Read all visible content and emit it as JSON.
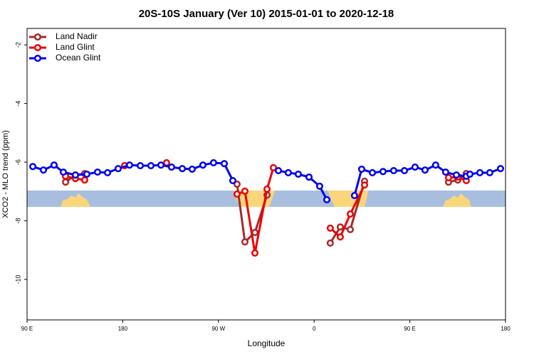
{
  "chart_data": {
    "type": "line",
    "title": "20S-10S January (Ver 10)   2015-01-01 to 2020-12-18",
    "x_label": "Longitude",
    "y_label": "XCO2 - MLO trend (ppm)",
    "xlim": [
      90,
      540
    ],
    "ylim": [
      -11.38,
      -1.44
    ],
    "xticks": [
      {
        "value": 90,
        "label": "90 E"
      },
      180,
      {
        "value": 270,
        "label": "90 W"
      },
      {
        "value": 360,
        "label": "0"
      },
      {
        "value": 450,
        "label": "90 E"
      },
      {
        "value": 540,
        "label": "180"
      }
    ],
    "yticks": [
      -2,
      -4,
      -6,
      -8,
      -10
    ],
    "grid": false,
    "legend": "top-left",
    "series": [
      {
        "name": "Land Nadir",
        "color": "#a52a2a",
        "x": [
          126.2,
          135.5,
          144.2,
          null,
          287.5,
          294.9,
          304.3,
          315.7,
          null,
          375.2,
          384.6,
          394.0,
          407.4,
          null,
          486.4,
          495.1,
          503.1
        ],
        "values": [
          -6.68,
          -6.44,
          -6.39,
          null,
          -6.75,
          -8.72,
          -8.4,
          -7.12,
          null,
          -8.76,
          -8.21,
          -8.3,
          -6.65,
          null,
          -6.68,
          -6.61,
          -6.39
        ]
      },
      {
        "name": "Land Glint",
        "color": "#ee0000",
        "x": [
          126.2,
          135.5,
          144.2,
          null,
          181.7,
          null,
          221.2,
          null,
          287.5,
          294.9,
          304.3,
          315.7,
          321.7,
          null,
          375.2,
          384.6,
          394.0,
          407.4,
          null,
          486.4,
          495.1,
          503.1
        ],
        "values": [
          -6.48,
          -6.56,
          -6.61,
          null,
          -6.12,
          null,
          -6.02,
          null,
          -7.09,
          -6.99,
          -9.1,
          -6.92,
          -6.19,
          null,
          -8.25,
          -8.55,
          -7.77,
          -6.78,
          null,
          -6.53,
          -6.51,
          -6.63
        ]
      },
      {
        "name": "Ocean Glint",
        "color": "#0000ee",
        "x": [
          95.4,
          105.4,
          115.4,
          124.1,
          135.5,
          146.2,
          156.3,
          165.7,
          175.7,
          186.4,
          196.5,
          206.5,
          215.9,
          225.9,
          236.0,
          245.3,
          255.4,
          265.4,
          275.5,
          283.5,
          null,
          326.4,
          335.7,
          345.1,
          355.2,
          365.2,
          371.9,
          null,
          398.0,
          404.7,
          414.8,
          424.8,
          434.8,
          444.9,
          454.9,
          464.3,
          474.3,
          483.7,
          493.8,
          503.1,
          506.5,
          515.9,
          525.2,
          535.3
        ],
        "values": [
          -6.15,
          -6.27,
          -6.1,
          -6.34,
          -6.44,
          -6.41,
          -6.34,
          -6.36,
          -6.22,
          -6.1,
          -6.12,
          -6.12,
          -6.1,
          -6.17,
          -6.22,
          -6.24,
          -6.1,
          -6.02,
          -6.05,
          -6.63,
          null,
          -6.29,
          -6.36,
          -6.41,
          -6.51,
          -6.82,
          -7.28,
          null,
          -7.14,
          -6.24,
          -6.36,
          -6.32,
          -6.29,
          -6.29,
          -6.17,
          -6.27,
          -6.1,
          -6.34,
          -6.44,
          -6.48,
          -6.41,
          -6.36,
          -6.36,
          -6.22
        ]
      }
    ]
  }
}
